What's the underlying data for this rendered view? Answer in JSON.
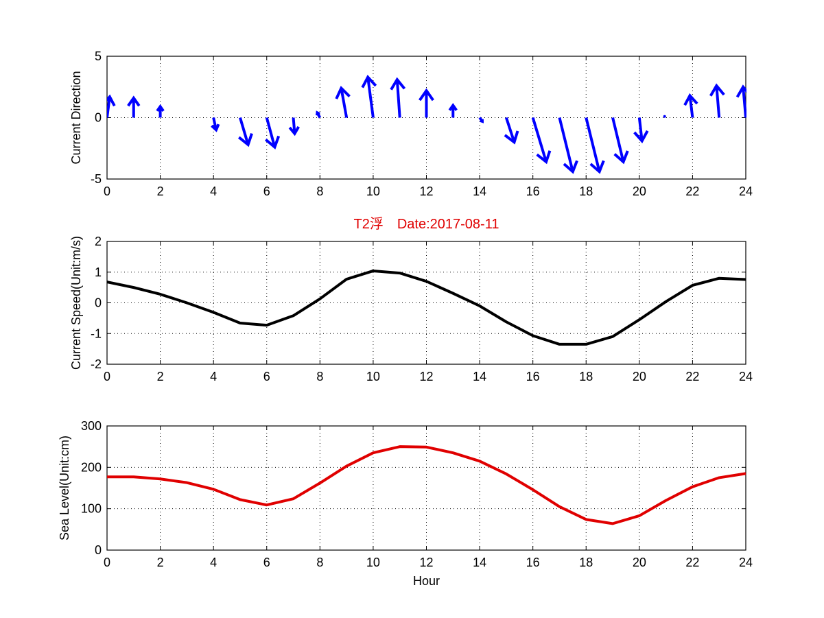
{
  "chart_data": [
    {
      "type": "quiver",
      "ylabel": "Current Direction",
      "xlim": [
        0,
        24
      ],
      "ylim": [
        -5,
        5
      ],
      "xticks": [
        "0",
        "2",
        "4",
        "6",
        "8",
        "10",
        "12",
        "14",
        "16",
        "18",
        "20",
        "22",
        "24"
      ],
      "yticks": [
        "5",
        "0",
        "-5"
      ],
      "color": "#0000ff",
      "x": [
        0,
        1,
        2,
        4,
        5,
        6,
        7,
        8,
        9,
        10,
        11,
        12,
        13,
        14,
        15,
        16,
        17,
        18,
        19,
        20,
        21,
        22,
        23,
        24
      ],
      "u": [
        0.1,
        0,
        0,
        0.1,
        0.3,
        0.3,
        0.05,
        -0.1,
        -0.2,
        -0.2,
        -0.1,
        0,
        0,
        0.1,
        0.3,
        0.5,
        0.5,
        0.5,
        0.4,
        0.1,
        -0.05,
        -0.1,
        -0.1,
        -0.1
      ],
      "v": [
        1.7,
        1.6,
        0.9,
        -1.0,
        -2.2,
        -2.4,
        -1.3,
        0.4,
        2.4,
        3.3,
        3.1,
        2.2,
        1.0,
        -0.3,
        -2.0,
        -3.6,
        -4.4,
        -4.4,
        -3.6,
        -1.9,
        0.1,
        1.8,
        2.6,
        2.5
      ],
      "grid": true
    },
    {
      "type": "line",
      "title": "T2浮　Date:2017-08-11",
      "ylabel": "Current Speed(Unit:m/s)",
      "xlim": [
        0,
        24
      ],
      "ylim": [
        -2,
        2
      ],
      "xticks": [
        "0",
        "2",
        "4",
        "6",
        "8",
        "10",
        "12",
        "14",
        "16",
        "18",
        "20",
        "22",
        "24"
      ],
      "yticks": [
        "2",
        "1",
        "0",
        "-1",
        "-2"
      ],
      "color": "#000000",
      "x": [
        0,
        1,
        2,
        3,
        4,
        5,
        6,
        7,
        8,
        9,
        10,
        11,
        12,
        13,
        14,
        15,
        16,
        17,
        18,
        19,
        20,
        21,
        22,
        23,
        24
      ],
      "y": [
        0.68,
        0.5,
        0.28,
        0.0,
        -0.31,
        -0.66,
        -0.73,
        -0.42,
        0.13,
        0.77,
        1.04,
        0.97,
        0.7,
        0.31,
        -0.1,
        -0.62,
        -1.07,
        -1.35,
        -1.35,
        -1.1,
        -0.55,
        0.04,
        0.57,
        0.8,
        0.76
      ],
      "grid": true
    },
    {
      "type": "line",
      "xlabel": "Hour",
      "ylabel": "Sea Level(Unit:cm)",
      "xlim": [
        0,
        24
      ],
      "ylim": [
        0,
        300
      ],
      "xticks": [
        "0",
        "2",
        "4",
        "6",
        "8",
        "10",
        "12",
        "14",
        "16",
        "18",
        "20",
        "22",
        "24"
      ],
      "yticks": [
        "300",
        "200",
        "100",
        "0"
      ],
      "color": "#e00000",
      "x": [
        0,
        1,
        2,
        3,
        4,
        5,
        6,
        7,
        8,
        9,
        10,
        11,
        12,
        13,
        14,
        15,
        16,
        17,
        18,
        19,
        20,
        21,
        22,
        23,
        24
      ],
      "y": [
        177,
        177,
        172,
        163,
        147,
        122,
        109,
        124,
        162,
        203,
        235,
        250,
        249,
        235,
        215,
        184,
        146,
        105,
        74,
        64,
        83,
        120,
        153,
        175,
        185
      ],
      "grid": true
    }
  ]
}
